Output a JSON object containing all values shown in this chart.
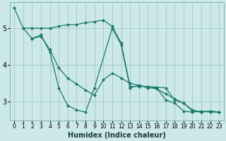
{
  "xlabel": "Humidex (Indice chaleur)",
  "bg_color": "#cce8e8",
  "grid_color": "#aacccc",
  "line_color": "#1a7a6e",
  "xlim": [
    -0.5,
    23.5
  ],
  "ylim": [
    2.5,
    5.7
  ],
  "yticks": [
    3,
    4,
    5
  ],
  "xticks": [
    0,
    1,
    2,
    3,
    4,
    5,
    6,
    7,
    8,
    9,
    10,
    11,
    12,
    13,
    14,
    15,
    16,
    17,
    18,
    19,
    20,
    21,
    22,
    23
  ],
  "series1_x": [
    0,
    1,
    2,
    3,
    4,
    5,
    6,
    7,
    8,
    9,
    10,
    11,
    12,
    13,
    14,
    15,
    16,
    17,
    18,
    19,
    20,
    21,
    22,
    23
  ],
  "series1_y": [
    5.55,
    5.0,
    5.0,
    5.0,
    5.0,
    5.05,
    5.1,
    5.1,
    5.15,
    5.18,
    5.22,
    5.05,
    4.6,
    3.42,
    3.42,
    3.42,
    3.4,
    3.38,
    3.05,
    2.97,
    2.75,
    2.72,
    2.75,
    2.72
  ],
  "series2_x": [
    2,
    3,
    4,
    5,
    6,
    7,
    8,
    9,
    11,
    12,
    13,
    14,
    15,
    16,
    17,
    18,
    19,
    20,
    21,
    22,
    23
  ],
  "series2_y": [
    4.72,
    4.82,
    4.35,
    3.38,
    2.9,
    2.78,
    2.72,
    3.38,
    5.0,
    4.55,
    3.38,
    3.45,
    3.38,
    3.38,
    3.05,
    2.97,
    2.75,
    2.72,
    2.75,
    2.72,
    2.72
  ],
  "series3_x": [
    1,
    2,
    3,
    4,
    5,
    6,
    7,
    8,
    9,
    10,
    11,
    12,
    13,
    14,
    15,
    16,
    17,
    18,
    19,
    20,
    21,
    22,
    23
  ],
  "series3_y": [
    5.0,
    4.72,
    4.78,
    4.42,
    3.92,
    3.65,
    3.48,
    3.32,
    3.18,
    3.6,
    3.78,
    3.65,
    3.5,
    3.45,
    3.4,
    3.35,
    3.22,
    3.08,
    2.97,
    2.78,
    2.72,
    2.75,
    2.72
  ]
}
